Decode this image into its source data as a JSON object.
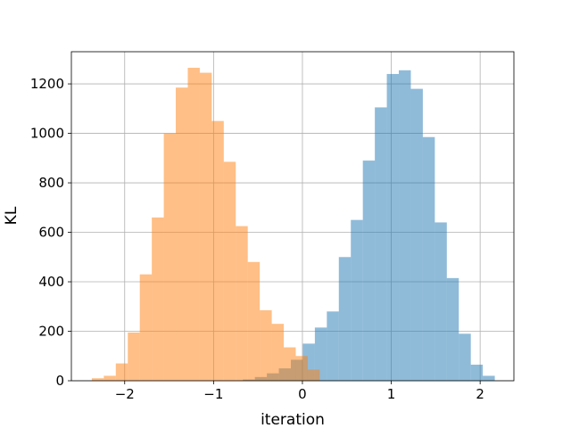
{
  "chart_data": {
    "type": "histogram",
    "title": "",
    "xlabel": "iteration",
    "ylabel": "KL",
    "xlim": [
      -2.6,
      2.38
    ],
    "ylim": [
      0,
      1330
    ],
    "grid": true,
    "x_ticks": [
      -2,
      -1,
      0,
      1,
      2
    ],
    "x_tick_labels": [
      "−2",
      "−1",
      "0",
      "1",
      "2"
    ],
    "y_ticks": [
      0,
      200,
      400,
      600,
      800,
      1000,
      1200
    ],
    "y_tick_labels": [
      "0",
      "200",
      "400",
      "600",
      "800",
      "1000",
      "1200"
    ],
    "series": [
      {
        "color": "#1f77b4",
        "opacity": 0.5,
        "bin_edges": [
          -0.67,
          -0.535,
          -0.4,
          -0.265,
          -0.13,
          0.005,
          0.14,
          0.275,
          0.41,
          0.545,
          0.68,
          0.815,
          0.95,
          1.085,
          1.22,
          1.355,
          1.49,
          1.625,
          1.76,
          1.895,
          2.03,
          2.165
        ],
        "counts": [
          5,
          15,
          30,
          50,
          85,
          150,
          215,
          280,
          500,
          650,
          890,
          1105,
          1240,
          1255,
          1180,
          985,
          640,
          415,
          190,
          65,
          20,
          5
        ]
      },
      {
        "color": "#ff7f0e",
        "opacity": 0.5,
        "bin_edges": [
          -2.37,
          -2.235,
          -2.1,
          -1.965,
          -1.83,
          -1.695,
          -1.56,
          -1.425,
          -1.29,
          -1.155,
          -1.02,
          -0.885,
          -0.75,
          -0.615,
          -0.48,
          -0.345,
          -0.21,
          -0.075,
          0.06,
          0.195
        ],
        "counts": [
          10,
          20,
          70,
          195,
          430,
          660,
          1000,
          1185,
          1265,
          1245,
          1050,
          885,
          625,
          480,
          285,
          230,
          135,
          100,
          45,
          15
        ]
      }
    ]
  }
}
